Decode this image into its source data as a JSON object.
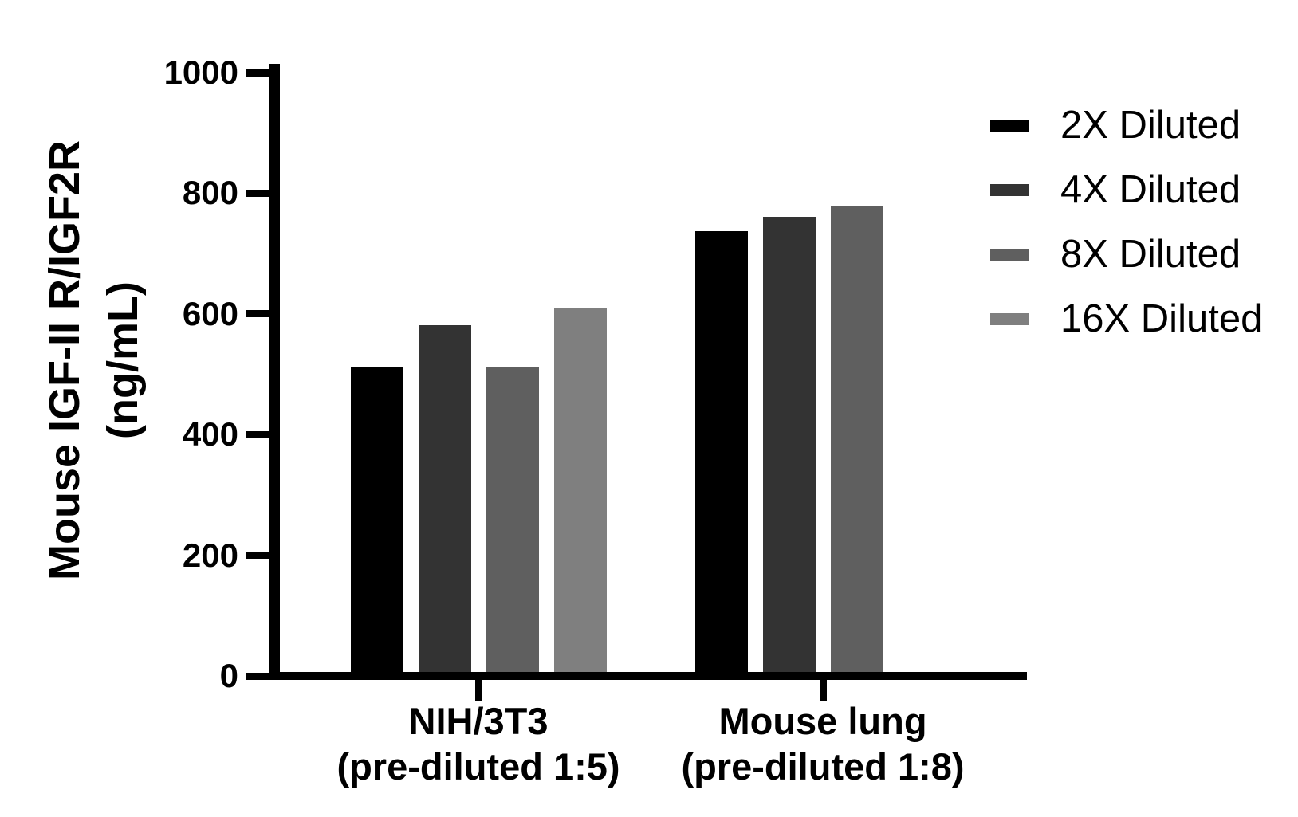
{
  "figure": {
    "background": "#ffffff",
    "text_color": "#000000"
  },
  "y_axis": {
    "title_line1": "Mouse IGF-II R/IGF2R",
    "title_line2": "(ng/mL)",
    "ticks": [
      0,
      200,
      400,
      600,
      800,
      1000
    ],
    "tick_labels": [
      "0",
      "200",
      "400",
      "600",
      "800",
      "1000"
    ]
  },
  "x_axis": {
    "groups": [
      {
        "label_line1": "NIH/3T3",
        "label_line2": "(pre-diluted 1:5)"
      },
      {
        "label_line1": "Mouse lung",
        "label_line2": "(pre-diluted 1:8)"
      }
    ]
  },
  "legend": {
    "position": "right",
    "entries": [
      {
        "label": "2X Diluted",
        "color": "#000000"
      },
      {
        "label": "4X Diluted",
        "color": "#333333"
      },
      {
        "label": "8X Diluted",
        "color": "#5f5f5f"
      },
      {
        "label": "16X Diluted",
        "color": "#7f7f7f"
      }
    ]
  },
  "chart_data": {
    "type": "bar",
    "title": "",
    "xlabel": "",
    "ylabel": "Mouse IGF-II R/IGF2R (ng/mL)",
    "ylim": [
      0,
      1000
    ],
    "y_tick_step": 200,
    "grid": false,
    "legend_position": "right",
    "categories": [
      "NIH/3T3 (pre-diluted 1:5)",
      "Mouse lung (pre-diluted 1:8)"
    ],
    "series": [
      {
        "name": "2X Diluted",
        "color": "#000000",
        "values": [
          513,
          737
        ]
      },
      {
        "name": "4X Diluted",
        "color": "#333333",
        "values": [
          581,
          761
        ]
      },
      {
        "name": "8X Diluted",
        "color": "#5f5f5f",
        "values": [
          513,
          779
        ]
      },
      {
        "name": "16X Diluted",
        "color": "#7f7f7f",
        "values": [
          610,
          null
        ]
      }
    ]
  }
}
